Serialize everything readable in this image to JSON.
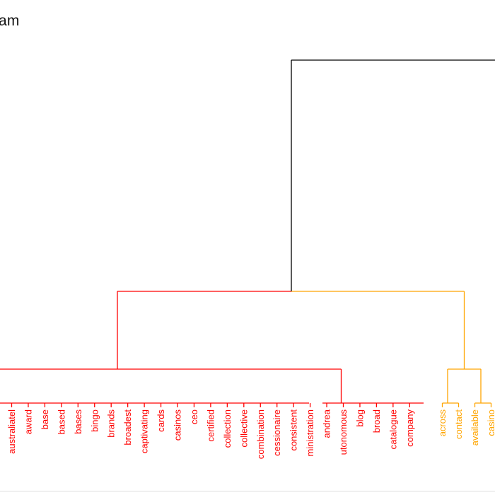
{
  "title_visible": "am",
  "colors": {
    "top": "#000000",
    "cluster_red": "#ff0000",
    "cluster_orange": "#ffa500"
  },
  "chart_data": {
    "type": "dendrogram",
    "title": "am",
    "clusters": [
      {
        "color": "#ff0000",
        "leaves": [
          "australiatel",
          "award",
          "base",
          "based",
          "bases",
          "bingo",
          "brands",
          "broadest",
          "captivating",
          "cards",
          "casinos",
          "ceo",
          "certified",
          "collection",
          "collective",
          "combination",
          "cessionaire",
          "consistent",
          "ministration",
          "andrea",
          "utonomous",
          "blog",
          "broad",
          "catalogue",
          "company"
        ]
      },
      {
        "color": "#ffa500",
        "leaves": [
          "across",
          "contact",
          "available",
          "casino"
        ]
      }
    ]
  }
}
